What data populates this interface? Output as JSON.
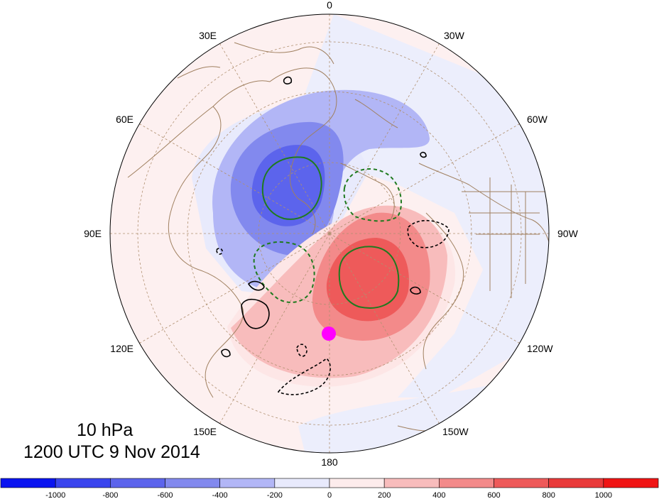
{
  "title": {
    "level": "10 hPa",
    "time": "1200 UTC 9 Nov 2014"
  },
  "longitude_labels": [
    "0",
    "30W",
    "60W",
    "90W",
    "120W",
    "150W",
    "180",
    "150E",
    "120E",
    "90E",
    "60E",
    "30E"
  ],
  "colorbar": {
    "tick_labels": [
      "-1000",
      "-800",
      "-600",
      "-400",
      "-200",
      "0",
      "200",
      "400",
      "600",
      "800",
      "1000"
    ],
    "colors": [
      "#0a14f0",
      "#3a45ee",
      "#5c64ec",
      "#8289ee",
      "#b2b6f6",
      "#e8eafc",
      "#fdecec",
      "#f8bcbc",
      "#f38a8a",
      "#ee5a5a",
      "#e93a3a",
      "#f01414"
    ]
  },
  "colors": {
    "negative_fill_1": "#e8eafc",
    "negative_fill_2": "#b2b6f6",
    "negative_fill_3": "#8289ee",
    "negative_fill_4": "#5c64ec",
    "positive_fill_1": "#fdecec",
    "positive_fill_2": "#f8bcbc",
    "positive_fill_3": "#f38a8a",
    "positive_fill_4": "#ee5a5a",
    "green_contour": "#1f7a1f",
    "coastline": "#a08060",
    "marker": "#ff00ff"
  }
}
